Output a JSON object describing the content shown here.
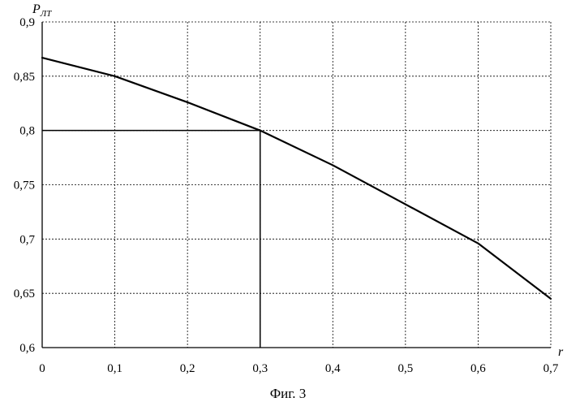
{
  "chart_data": {
    "type": "line",
    "x": [
      0,
      0.1,
      0.2,
      0.3,
      0.4,
      0.5,
      0.6,
      0.7
    ],
    "series": [
      {
        "values": [
          0.867,
          0.85,
          0.826,
          0.8,
          0.768,
          0.732,
          0.696,
          0.645
        ]
      }
    ],
    "ylabel_main": "P",
    "ylabel_sub": "ЛТ",
    "xlabel": "r",
    "xlim": [
      0,
      0.7
    ],
    "ylim": [
      0.6,
      0.9
    ],
    "x_ticks": [
      0,
      0.1,
      0.2,
      0.3,
      0.4,
      0.5,
      0.6,
      0.7
    ],
    "x_tick_labels": [
      "0",
      "0,1",
      "0,2",
      "0,3",
      "0,4",
      "0,5",
      "0,6",
      "0,7"
    ],
    "y_ticks": [
      0.6,
      0.65,
      0.7,
      0.75,
      0.8,
      0.85,
      0.9
    ],
    "y_tick_labels": [
      "0,6",
      "0,65",
      "0,7",
      "0,75",
      "0,8",
      "0,85",
      "0,9"
    ],
    "grid": true,
    "grid_style": "dashed",
    "reference_point": {
      "x": 0.3,
      "y": 0.8
    },
    "line_color": "#000000",
    "grid_color": "#000000"
  },
  "caption": "Фиг. 3"
}
